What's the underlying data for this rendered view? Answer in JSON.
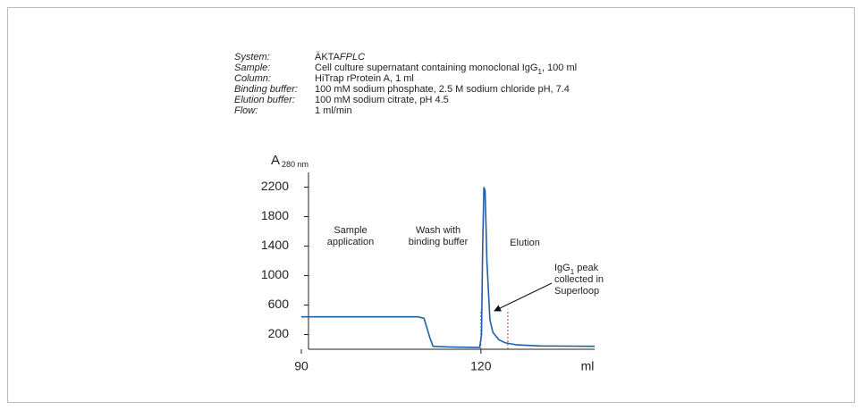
{
  "chart_data": {
    "type": "line",
    "info": [
      {
        "label": "System:",
        "value": [
          "ÄKTA",
          "FPLC"
        ]
      },
      {
        "label": "Sample:",
        "value": [
          "Cell culture supernatant containing monoclonal IgG",
          "1",
          ", 100 ml"
        ]
      },
      {
        "label": "Column:",
        "value": [
          "HiTrap rProtein A, 1 ml"
        ]
      },
      {
        "label": "Binding buffer:",
        "value": [
          "100 mM sodium phosphate, 2.5 M sodium chloride pH, 7.4"
        ]
      },
      {
        "label": "Elution buffer:",
        "value": [
          "100 mM sodium citrate, pH 4.5"
        ]
      },
      {
        "label": "Flow:",
        "value": [
          "1 ml/min"
        ]
      }
    ],
    "y_label": "A",
    "y_label_sub": "280 nm",
    "x_label": "ml",
    "xlim": [
      90,
      139
    ],
    "xticks": [
      90,
      120
    ],
    "ylim": [
      0,
      2400
    ],
    "yticks": [
      200,
      600,
      1000,
      1400,
      1800,
      2200
    ],
    "x": [
      90,
      109.5,
      110.5,
      111.5,
      112,
      115,
      119.8,
      120.1,
      120.3,
      120.5,
      120.7,
      121,
      121.5,
      122,
      123,
      124,
      126,
      130,
      139
    ],
    "series": [
      {
        "color": "#1f5fa8",
        "values": [
          440,
          440,
          420,
          150,
          40,
          30,
          25,
          200,
          1400,
          2200,
          2150,
          1200,
          400,
          230,
          130,
          90,
          60,
          45,
          40
        ]
      }
    ],
    "markers": {
      "color": "#c0392b",
      "x": [
        120,
        124.5
      ],
      "height": 540
    },
    "annotations": [
      {
        "lines": [
          "Sample",
          "application"
        ]
      },
      {
        "lines": [
          "Wash with",
          "binding buffer"
        ]
      },
      {
        "lines": [
          "Elution"
        ]
      },
      {
        "lines": [
          [
            "IgG",
            "1",
            " peak"
          ],
          [
            "collected in"
          ],
          [
            "Superloop"
          ]
        ]
      }
    ]
  }
}
